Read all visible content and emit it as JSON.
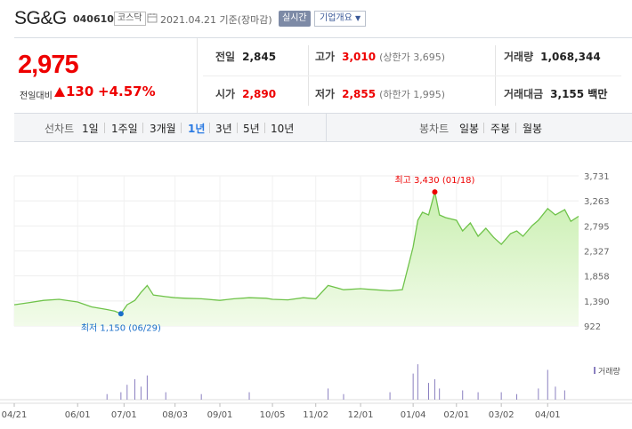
{
  "header": {
    "name": "SG&G",
    "code": "040610",
    "market": "코스닥",
    "date": "2021.04.21 기준(장마감)",
    "realtime_label": "실시간",
    "info_label": "기업개요"
  },
  "summary": {
    "price": "2,975",
    "change_label": "전일대비",
    "change": "130",
    "change_pct": "+4.57%",
    "prev_label": "전일",
    "prev": "2,845",
    "open_label": "시가",
    "open": "2,890",
    "high_label": "고가",
    "high": "3,010",
    "upper_limit": "(상한가 3,695)",
    "low_label": "저가",
    "low": "2,855",
    "lower_limit": "(하한가 1,995)",
    "volume_label": "거래량",
    "volume": "1,068,344",
    "amount_label": "거래대금",
    "amount": "3,155 백만"
  },
  "tabs": {
    "line_label": "선차트",
    "periods": [
      "1일",
      "1주일",
      "3개월",
      "1년",
      "3년",
      "5년",
      "10년"
    ],
    "selected": "1년",
    "candle_label": "봉차트",
    "candles": [
      "일봉",
      "주봉",
      "월봉"
    ]
  },
  "colors": {
    "up": "#ee0000",
    "line": "#6fc34a",
    "fill_top": "#c9efb0",
    "fill_bottom": "#f2fbea",
    "volume": "#8a7fc0",
    "low": "#1a6fc9"
  },
  "chart_data": {
    "type": "area",
    "ylim": [
      922,
      3731
    ],
    "yticks": [
      922,
      1390,
      1858,
      2327,
      2795,
      3263,
      3731
    ],
    "ytick_labels": [
      "922",
      "1,390",
      "1,858",
      "2,327",
      "2,795",
      "3,263",
      "3,731"
    ],
    "xtick_labels": [
      "04/21",
      "06/01",
      "07/01",
      "08/03",
      "09/01",
      "10/05",
      "11/02",
      "12/01",
      "01/04",
      "02/01",
      "03/02",
      "04/01"
    ],
    "xtick_dates": [
      "2020-04-21",
      "2020-06-01",
      "2020-07-01",
      "2020-08-03",
      "2020-09-01",
      "2020-10-05",
      "2020-11-02",
      "2020-12-01",
      "2021-01-04",
      "2021-02-01",
      "2021-03-02",
      "2021-04-01"
    ],
    "x_range": [
      "2020-04-21",
      "2021-04-21"
    ],
    "series": [
      {
        "x": [
          "2020-04-21",
          "2020-05-01",
          "2020-05-10",
          "2020-05-20",
          "2020-06-01",
          "2020-06-10",
          "2020-06-20",
          "2020-06-25",
          "2020-06-29",
          "2020-07-03",
          "2020-07-08",
          "2020-07-12",
          "2020-07-16",
          "2020-07-20",
          "2020-07-28",
          "2020-08-03",
          "2020-08-10",
          "2020-08-20",
          "2020-09-01",
          "2020-09-10",
          "2020-09-20",
          "2020-10-01",
          "2020-10-05",
          "2020-10-15",
          "2020-10-25",
          "2020-11-02",
          "2020-11-10",
          "2020-11-20",
          "2020-12-01",
          "2020-12-10",
          "2020-12-20",
          "2020-12-28",
          "2021-01-04",
          "2021-01-07",
          "2021-01-10",
          "2021-01-14",
          "2021-01-18",
          "2021-01-21",
          "2021-01-25",
          "2021-02-01",
          "2021-02-05",
          "2021-02-10",
          "2021-02-15",
          "2021-02-20",
          "2021-02-25",
          "2021-03-02",
          "2021-03-08",
          "2021-03-12",
          "2021-03-16",
          "2021-03-22",
          "2021-03-26",
          "2021-04-01",
          "2021-04-06",
          "2021-04-12",
          "2021-04-16",
          "2021-04-21"
        ],
        "y": [
          1320,
          1360,
          1400,
          1420,
          1370,
          1280,
          1230,
          1200,
          1150,
          1320,
          1400,
          1550,
          1680,
          1500,
          1470,
          1450,
          1440,
          1430,
          1400,
          1430,
          1450,
          1440,
          1420,
          1410,
          1450,
          1430,
          1680,
          1600,
          1620,
          1600,
          1580,
          1600,
          2400,
          2900,
          3050,
          3000,
          3430,
          3000,
          2950,
          2900,
          2700,
          2850,
          2600,
          2750,
          2580,
          2450,
          2650,
          2700,
          2600,
          2800,
          2900,
          3120,
          3000,
          3100,
          2880,
          2975
        ]
      }
    ],
    "annotations": [
      {
        "label": "최고 3,430 (01/18)",
        "x": "2021-01-18",
        "y": 3430,
        "color": "#ee0000"
      },
      {
        "label": "최저 1,150 (06/29)",
        "x": "2020-06-29",
        "y": 1150,
        "color": "#1a6fc9"
      }
    ],
    "volume_label": "거래량",
    "volume_series": {
      "x": [
        "2020-06-20",
        "2020-06-29",
        "2020-07-03",
        "2020-07-08",
        "2020-07-12",
        "2020-07-16",
        "2020-07-28",
        "2020-08-20",
        "2020-09-20",
        "2020-11-10",
        "2020-11-20",
        "2020-12-20",
        "2021-01-04",
        "2021-01-07",
        "2021-01-14",
        "2021-01-18",
        "2021-01-21",
        "2021-02-05",
        "2021-02-15",
        "2021-03-02",
        "2021-03-12",
        "2021-03-26",
        "2021-04-01",
        "2021-04-06",
        "2021-04-12"
      ],
      "y": [
        0.15,
        0.2,
        0.4,
        0.55,
        0.35,
        0.65,
        0.2,
        0.15,
        0.2,
        0.3,
        0.15,
        0.2,
        0.7,
        0.95,
        0.45,
        0.55,
        0.3,
        0.25,
        0.2,
        0.2,
        0.15,
        0.3,
        0.8,
        0.35,
        0.25
      ]
    }
  }
}
